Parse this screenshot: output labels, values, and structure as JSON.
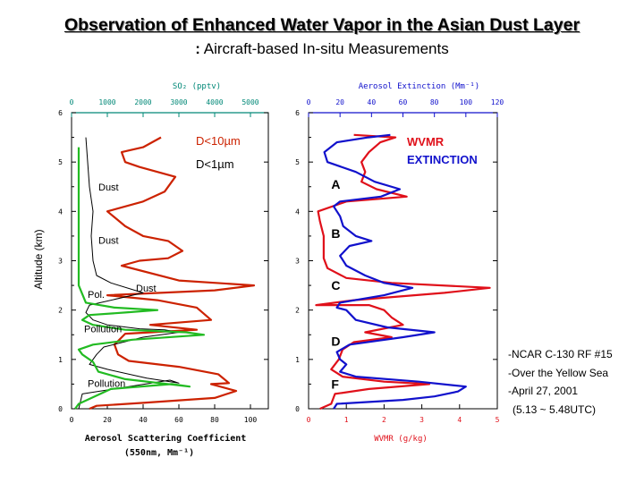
{
  "title": "Observation of Enhanced Water Vapor in the Asian Dust Layer",
  "subtitle": "Aircraft-based In-situ Measurements",
  "subtitle_prefix": ":",
  "colors": {
    "red": "#cc2200",
    "black": "#000000",
    "green": "#22bb22",
    "blue": "#1111cc",
    "red2": "#e0101a",
    "teal": "#008877"
  },
  "chart_data": [
    {
      "type": "line",
      "ylabel": "Altitude (km)",
      "ylim": [
        0,
        6
      ],
      "y_ticks": [
        "0",
        "1",
        "2",
        "3",
        "4",
        "5",
        "6"
      ],
      "xlabel": "Aerosol Scattering Coefficient",
      "xlabel2": "(550nm, Mm⁻¹)",
      "xlim": [
        0,
        110
      ],
      "x_ticks": [
        {
          "value": 0,
          "label": "0"
        },
        {
          "value": 20,
          "label": "20"
        },
        {
          "value": 40,
          "label": "40"
        },
        {
          "value": 60,
          "label": "60"
        },
        {
          "value": 80,
          "label": "80"
        },
        {
          "value": 100,
          "label": "100"
        }
      ],
      "top_axis": {
        "label": "SO₂ (pptv)",
        "xlim": [
          0,
          5500
        ],
        "ticks": [
          {
            "value": 0,
            "label": "0"
          },
          {
            "value": 1000,
            "label": "1000"
          },
          {
            "value": 2000,
            "label": "2000"
          },
          {
            "value": 3000,
            "label": "3000"
          },
          {
            "value": 4000,
            "label": "4000"
          },
          {
            "value": 5000,
            "label": "5000"
          }
        ]
      },
      "legend": [
        "D<10µm",
        "D<1µm"
      ],
      "annotations": [
        {
          "text": "Dust",
          "x": 15,
          "y": 4.5
        },
        {
          "text": "Dust",
          "x": 15,
          "y": 3.42
        },
        {
          "text": "Dust",
          "x": 36,
          "y": 2.45
        },
        {
          "text": "Pol.",
          "x": 9,
          "y": 2.32
        },
        {
          "text": "Pollution",
          "x": 7,
          "y": 1.62
        },
        {
          "text": "Pollution",
          "x": 9,
          "y": 0.52
        }
      ],
      "series": [
        {
          "name": "D<10µm",
          "color": "red",
          "points": [
            [
              10,
              0
            ],
            [
              14,
              0.06
            ],
            [
              40,
              0.12
            ],
            [
              80,
              0.22
            ],
            [
              92,
              0.36
            ],
            [
              78,
              0.5
            ],
            [
              88,
              0.52
            ],
            [
              82,
              0.7
            ],
            [
              60,
              0.85
            ],
            [
              32,
              0.97
            ],
            [
              26,
              1.1
            ],
            [
              24,
              1.3
            ],
            [
              30,
              1.52
            ],
            [
              70,
              1.6
            ],
            [
              44,
              1.7
            ],
            [
              78,
              1.8
            ],
            [
              70,
              2.05
            ],
            [
              48,
              2.2
            ],
            [
              20,
              2.3
            ],
            [
              80,
              2.4
            ],
            [
              102,
              2.5
            ],
            [
              60,
              2.6
            ],
            [
              28,
              2.9
            ],
            [
              38,
              3.0
            ],
            [
              54,
              3.05
            ],
            [
              62,
              3.2
            ],
            [
              54,
              3.4
            ],
            [
              40,
              3.5
            ],
            [
              30,
              3.7
            ],
            [
              20,
              4.0
            ],
            [
              40,
              4.2
            ],
            [
              52,
              4.4
            ],
            [
              58,
              4.7
            ],
            [
              38,
              4.9
            ],
            [
              30,
              5.0
            ],
            [
              28,
              5.2
            ],
            [
              40,
              5.3
            ],
            [
              50,
              5.5
            ]
          ]
        },
        {
          "name": "D<1µm",
          "color": "black",
          "points": [
            [
              4,
              0
            ],
            [
              6,
              0.3
            ],
            [
              32,
              0.45
            ],
            [
              55,
              0.58
            ],
            [
              60,
              0.52
            ],
            [
              42,
              0.62
            ],
            [
              20,
              0.8
            ],
            [
              10,
              0.9
            ],
            [
              14,
              1.1
            ],
            [
              18,
              1.25
            ],
            [
              40,
              1.45
            ],
            [
              60,
              1.55
            ],
            [
              52,
              1.6
            ],
            [
              38,
              1.62
            ],
            [
              20,
              1.7
            ],
            [
              12,
              1.8
            ],
            [
              8,
              1.95
            ],
            [
              10,
              2.1
            ],
            [
              40,
              2.35
            ],
            [
              22,
              2.55
            ],
            [
              14,
              2.7
            ],
            [
              12,
              3.0
            ],
            [
              11,
              3.5
            ],
            [
              12,
              4.0
            ],
            [
              10,
              4.5
            ],
            [
              9,
              5.0
            ],
            [
              8,
              5.5
            ]
          ]
        },
        {
          "name": "SO₂",
          "color": "green",
          "points": [
            [
              2,
              0
            ],
            [
              4,
              0.1
            ],
            [
              22,
              0.4
            ],
            [
              56,
              0.5
            ],
            [
              66,
              0.45
            ],
            [
              30,
              0.6
            ],
            [
              15,
              0.75
            ],
            [
              12,
              0.95
            ],
            [
              6,
              1.1
            ],
            [
              4,
              1.2
            ],
            [
              12,
              1.3
            ],
            [
              34,
              1.4
            ],
            [
              74,
              1.5
            ],
            [
              64,
              1.55
            ],
            [
              30,
              1.6
            ],
            [
              12,
              1.7
            ],
            [
              6,
              1.8
            ],
            [
              10,
              1.9
            ],
            [
              30,
              1.95
            ],
            [
              48,
              2.0
            ],
            [
              24,
              2.05
            ],
            [
              8,
              2.15
            ],
            [
              4,
              2.5
            ],
            [
              4,
              3.5
            ],
            [
              4,
              4.5
            ],
            [
              4,
              5.3
            ]
          ]
        }
      ]
    },
    {
      "type": "line",
      "ylim": [
        0,
        6
      ],
      "y_ticks": [
        "0",
        "1",
        "2",
        "3",
        "4",
        "5",
        "6"
      ],
      "xlabel": "WVMR (g/kg)",
      "xlim": [
        0,
        5
      ],
      "x_ticks": [
        {
          "value": 0,
          "label": "0"
        },
        {
          "value": 1,
          "label": "1"
        },
        {
          "value": 2,
          "label": "2"
        },
        {
          "value": 3,
          "label": "3"
        },
        {
          "value": 4,
          "label": "4"
        },
        {
          "value": 5,
          "label": "5"
        }
      ],
      "top_axis": {
        "label": "Aerosol Extinction (Mm⁻¹)",
        "xlim": [
          0,
          120
        ],
        "ticks": [
          {
            "value": 0,
            "label": "0"
          },
          {
            "value": 20,
            "label": "20"
          },
          {
            "value": 40,
            "label": "40"
          },
          {
            "value": 60,
            "label": "60"
          },
          {
            "value": 80,
            "label": "80"
          },
          {
            "value": 100,
            "label": "100"
          },
          {
            "value": 120,
            "label": "120"
          }
        ]
      },
      "legend": [
        "WVMR",
        "EXTINCTION"
      ],
      "annotations": [
        {
          "text": "A",
          "x": 0.6,
          "y": 4.55
        },
        {
          "text": "B",
          "x": 0.6,
          "y": 3.55
        },
        {
          "text": "C",
          "x": 0.6,
          "y": 2.5
        },
        {
          "text": "D",
          "x": 0.6,
          "y": 1.37
        },
        {
          "text": "F",
          "x": 0.6,
          "y": 0.5
        }
      ],
      "series": [
        {
          "name": "WVMR",
          "color": "red",
          "points": [
            [
              0.3,
              0
            ],
            [
              0.6,
              0.1
            ],
            [
              0.7,
              0.3
            ],
            [
              1.6,
              0.4
            ],
            [
              3.2,
              0.5
            ],
            [
              2.0,
              0.55
            ],
            [
              0.9,
              0.65
            ],
            [
              0.6,
              0.8
            ],
            [
              0.8,
              1.0
            ],
            [
              0.9,
              1.2
            ],
            [
              1.2,
              1.35
            ],
            [
              2.2,
              1.45
            ],
            [
              1.5,
              1.55
            ],
            [
              2.5,
              1.7
            ],
            [
              2.2,
              1.85
            ],
            [
              2.0,
              2.0
            ],
            [
              1.6,
              2.1
            ],
            [
              0.2,
              2.1
            ],
            [
              1.2,
              2.2
            ],
            [
              3.6,
              2.35
            ],
            [
              4.8,
              2.45
            ],
            [
              2.2,
              2.55
            ],
            [
              1.0,
              2.65
            ],
            [
              0.5,
              2.85
            ],
            [
              0.4,
              3.05
            ],
            [
              0.4,
              3.5
            ],
            [
              0.3,
              3.8
            ],
            [
              0.25,
              4.0
            ],
            [
              1.0,
              4.2
            ],
            [
              2.6,
              4.3
            ],
            [
              1.8,
              4.45
            ],
            [
              1.4,
              4.6
            ],
            [
              1.5,
              4.8
            ],
            [
              1.4,
              5.0
            ],
            [
              1.6,
              5.2
            ],
            [
              1.9,
              5.4
            ],
            [
              2.3,
              5.5
            ],
            [
              1.2,
              5.55
            ]
          ]
        },
        {
          "name": "EXTINCTION",
          "color": "blue",
          "points": [
            [
              16,
              0
            ],
            [
              18,
              0.1
            ],
            [
              60,
              0.18
            ],
            [
              80,
              0.25
            ],
            [
              95,
              0.35
            ],
            [
              100,
              0.45
            ],
            [
              70,
              0.55
            ],
            [
              30,
              0.65
            ],
            [
              20,
              0.75
            ],
            [
              24,
              0.9
            ],
            [
              20,
              1.0
            ],
            [
              18,
              1.15
            ],
            [
              26,
              1.3
            ],
            [
              60,
              1.45
            ],
            [
              80,
              1.55
            ],
            [
              50,
              1.65
            ],
            [
              30,
              1.8
            ],
            [
              24,
              2.0
            ],
            [
              18,
              2.05
            ],
            [
              20,
              2.15
            ],
            [
              48,
              2.3
            ],
            [
              66,
              2.45
            ],
            [
              48,
              2.55
            ],
            [
              36,
              2.7
            ],
            [
              24,
              2.9
            ],
            [
              20,
              3.1
            ],
            [
              26,
              3.3
            ],
            [
              40,
              3.4
            ],
            [
              30,
              3.5
            ],
            [
              22,
              3.7
            ],
            [
              20,
              3.9
            ],
            [
              16,
              4.1
            ],
            [
              20,
              4.2
            ],
            [
              46,
              4.3
            ],
            [
              58,
              4.45
            ],
            [
              42,
              4.6
            ],
            [
              30,
              4.8
            ],
            [
              12,
              5.0
            ],
            [
              10,
              5.2
            ],
            [
              18,
              5.4
            ],
            [
              38,
              5.5
            ],
            [
              52,
              5.55
            ]
          ]
        }
      ]
    }
  ],
  "notes": [
    "-NCAR C-130 RF #15",
    "-Over the Yellow Sea",
    "-April 27, 2001",
    "(5.13 ~ 5.48UTC)"
  ]
}
